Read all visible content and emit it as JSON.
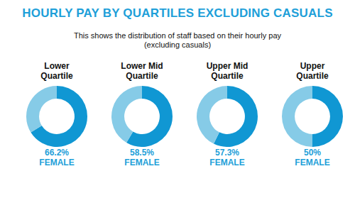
{
  "title": "HOURLY PAY BY QUARTILES EXCLUDING CASUALS",
  "subtitle": [
    "This shows the distribution of staff based on their hourly pay",
    "(excluding casuals)"
  ],
  "chart_data": [
    {
      "type": "doughnut",
      "title": [
        "Lower",
        "Quartile"
      ],
      "categories": [
        "FEMALE",
        null
      ],
      "values": [
        66.2,
        33.8
      ],
      "value_labels": [
        "66.2%",
        null
      ],
      "colors": [
        "#1097d3",
        "#86cbe7"
      ]
    },
    {
      "type": "doughnut",
      "title": [
        "Lower Mid",
        "Quartile"
      ],
      "categories": [
        "FEMALE",
        null
      ],
      "values": [
        58.5,
        41.5
      ],
      "value_labels": [
        "58.5%",
        null
      ],
      "colors": [
        "#1097d3",
        "#86cbe7"
      ]
    },
    {
      "type": "doughnut",
      "title": [
        "Upper Mid",
        "Quartile"
      ],
      "categories": [
        "FEMALE",
        null
      ],
      "values": [
        57.3,
        42.7
      ],
      "value_labels": [
        "57.3%",
        null
      ],
      "colors": [
        "#1097d3",
        "#86cbe7"
      ]
    },
    {
      "type": "doughnut",
      "title": [
        "Upper",
        "Quartile"
      ],
      "categories": [
        "FEMALE",
        null
      ],
      "values": [
        50,
        50
      ],
      "value_labels": [
        "50%",
        null
      ],
      "colors": [
        "#1097d3",
        "#86cbe7"
      ]
    }
  ]
}
